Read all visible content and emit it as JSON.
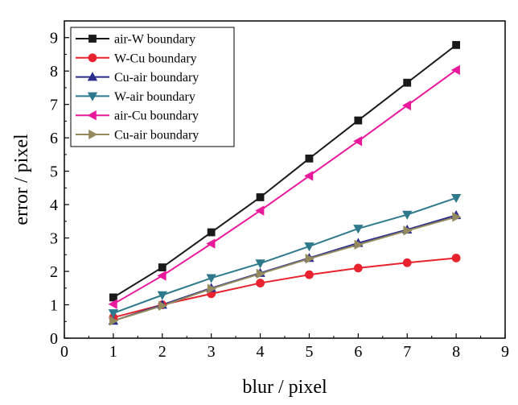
{
  "chart_data": {
    "type": "line",
    "title": "",
    "xlabel": "blur / pixel",
    "ylabel": "error / pixel",
    "xlim": [
      0,
      9
    ],
    "ylim": [
      0,
      9.5
    ],
    "xticks": [
      0,
      1,
      2,
      3,
      4,
      5,
      6,
      7,
      8,
      9
    ],
    "yticks": [
      0,
      1,
      2,
      3,
      4,
      5,
      6,
      7,
      8,
      9
    ],
    "grid": false,
    "legend_position": "top-left",
    "x": [
      1,
      2,
      3,
      4,
      5,
      6,
      7,
      8
    ],
    "series": [
      {
        "name": "air-W boundary",
        "color": "#1a1a1a",
        "marker": "square",
        "values": [
          1.22,
          2.12,
          3.17,
          4.22,
          5.38,
          6.52,
          7.65,
          8.78
        ]
      },
      {
        "name": "W-Cu boundary",
        "color": "#e8232f",
        "marker": "circle",
        "values": [
          0.62,
          1.0,
          1.33,
          1.65,
          1.9,
          2.1,
          2.26,
          2.4
        ]
      },
      {
        "name": "Cu-air boundary",
        "color": "#2b2e8c",
        "marker": "triangle-up",
        "values": [
          0.52,
          1.0,
          1.5,
          1.95,
          2.4,
          2.85,
          3.25,
          3.68
        ]
      },
      {
        "name": "W-air boundary",
        "color": "#2e7a8c",
        "marker": "triangle-down",
        "values": [
          0.75,
          1.29,
          1.8,
          2.24,
          2.75,
          3.28,
          3.7,
          4.2
        ]
      },
      {
        "name": "air-Cu boundary",
        "color": "#e8199b",
        "marker": "triangle-left",
        "values": [
          1.02,
          1.87,
          2.83,
          3.82,
          4.86,
          5.9,
          6.97,
          8.03
        ]
      },
      {
        "name": "Cu-air boundary",
        "color": "#948a5e",
        "marker": "triangle-right",
        "values": [
          0.52,
          0.97,
          1.48,
          1.93,
          2.38,
          2.8,
          3.22,
          3.63
        ]
      }
    ]
  }
}
